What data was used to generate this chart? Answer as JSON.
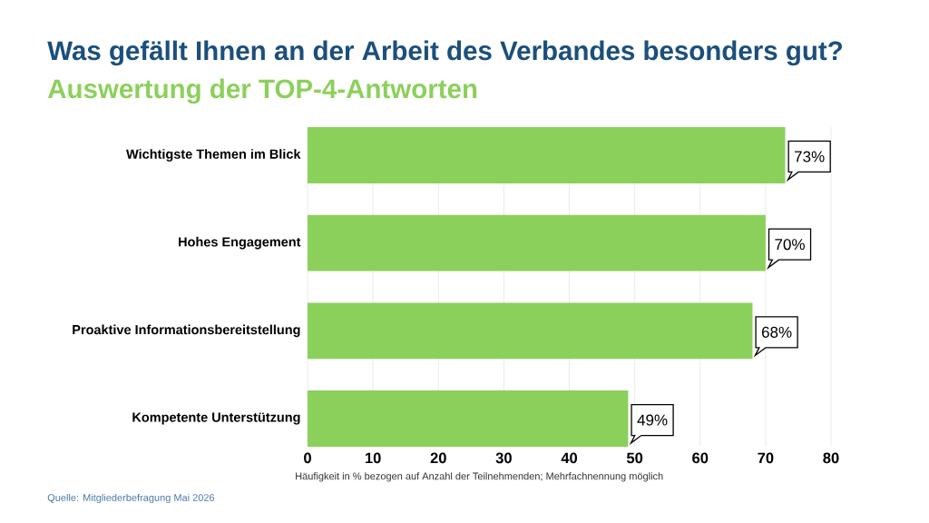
{
  "chart_data": {
    "type": "bar",
    "orientation": "horizontal",
    "title": "Was gefällt Ihnen an der Arbeit des Verbandes besonders gut?",
    "subtitle": "Auswertung der TOP-4-Antworten",
    "xlabel": "Häufigkeit in % bezogen auf Anzahl der Teilnehmenden; Mehrfachnennung möglich",
    "categories": [
      "Wichtigste Themen im Blick",
      "Hohes Engagement",
      "Proaktive Informationsbereitstellung",
      "Kompetente Unterstützung"
    ],
    "values": [
      73,
      70,
      68,
      49
    ],
    "value_labels": [
      "73%",
      "70%",
      "68%",
      "49%"
    ],
    "color": "#8bd05a",
    "xlim": [
      0,
      80
    ],
    "xticks": [
      0,
      10,
      20,
      30,
      40,
      50,
      60,
      70,
      80
    ],
    "grid": "x",
    "annotations": [
      "Quelle: Mitgliederbefragung Mai 2026"
    ]
  }
}
